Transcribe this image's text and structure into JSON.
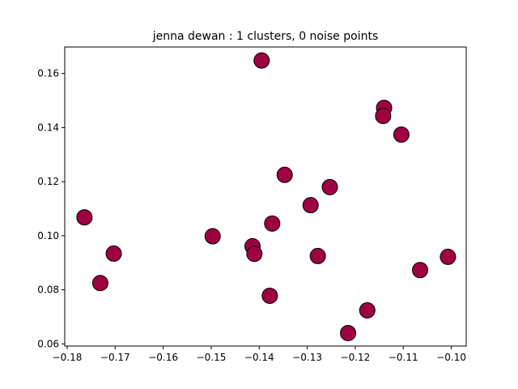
{
  "chart_data": {
    "type": "scatter",
    "title": "jenna dewan : 1 clusters, 0 noise points",
    "xlabel": "",
    "ylabel": "",
    "xlim": [
      -0.1805,
      -0.0969
    ],
    "ylim": [
      0.0592,
      0.1698
    ],
    "x_ticks": [
      -0.18,
      -0.17,
      -0.16,
      -0.15,
      -0.14,
      -0.13,
      -0.12,
      -0.11,
      -0.1
    ],
    "x_tick_labels": [
      "−0.18",
      "−0.17",
      "−0.16",
      "−0.15",
      "−0.14",
      "−0.13",
      "−0.12",
      "−0.11",
      "−0.10"
    ],
    "y_ticks": [
      0.06,
      0.08,
      0.1,
      0.12,
      0.14,
      0.16
    ],
    "y_tick_labels": [
      "0.06",
      "0.08",
      "0.10",
      "0.12",
      "0.14",
      "0.16"
    ],
    "grid": false,
    "marker_color": "#9e0142",
    "marker_edge_color": "#000000",
    "points": [
      {
        "x": -0.1395,
        "y": 0.1648
      },
      {
        "x": -0.114,
        "y": 0.1473
      },
      {
        "x": -0.1142,
        "y": 0.1443
      },
      {
        "x": -0.1104,
        "y": 0.1374
      },
      {
        "x": -0.1347,
        "y": 0.1225
      },
      {
        "x": -0.1253,
        "y": 0.118
      },
      {
        "x": -0.1293,
        "y": 0.1113
      },
      {
        "x": -0.1764,
        "y": 0.1068
      },
      {
        "x": -0.1373,
        "y": 0.1045
      },
      {
        "x": -0.1497,
        "y": 0.0998
      },
      {
        "x": -0.1414,
        "y": 0.0961
      },
      {
        "x": -0.141,
        "y": 0.0933
      },
      {
        "x": -0.1703,
        "y": 0.0934
      },
      {
        "x": -0.1278,
        "y": 0.0925
      },
      {
        "x": -0.1007,
        "y": 0.0922
      },
      {
        "x": -0.1065,
        "y": 0.0873
      },
      {
        "x": -0.1731,
        "y": 0.0825
      },
      {
        "x": -0.1378,
        "y": 0.0778
      },
      {
        "x": -0.1175,
        "y": 0.0724
      },
      {
        "x": -0.1215,
        "y": 0.064
      }
    ]
  }
}
